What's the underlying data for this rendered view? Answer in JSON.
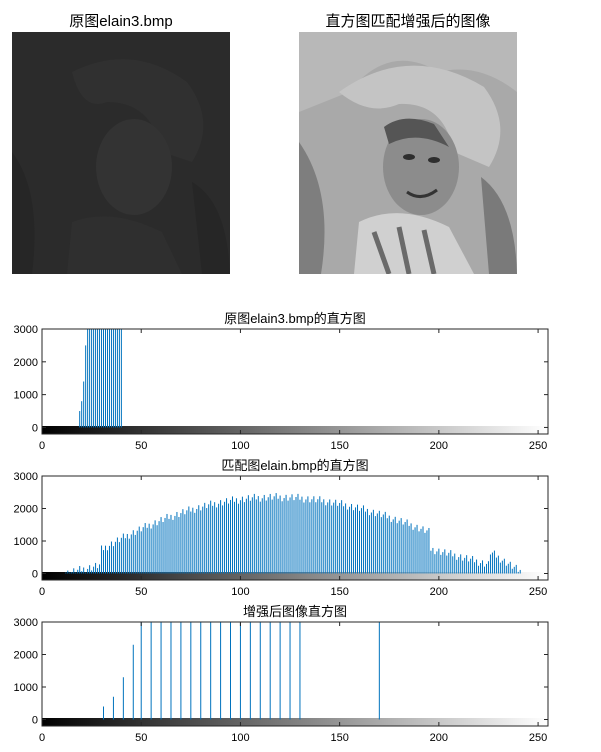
{
  "images": [
    {
      "title": "原图elain3.bmp",
      "name": "original-image",
      "tone": "dark"
    },
    {
      "title": "直方图匹配增强后的图像",
      "name": "enhanced-image",
      "tone": "light"
    }
  ],
  "colors": {
    "bar": "#0072BD",
    "axis": "#262626",
    "text": "#000000"
  },
  "chart_data": [
    {
      "type": "bar",
      "title": "原图elain3.bmp的直方图",
      "xlabel": "",
      "ylabel": "",
      "xlim": [
        0,
        255
      ],
      "ylim": [
        -200,
        3000
      ],
      "xticks": [
        0,
        50,
        100,
        150,
        200,
        250
      ],
      "yticks": [
        0,
        1000,
        2000,
        3000
      ],
      "grid": false,
      "colorbar": "grayscale",
      "x": [
        19,
        20,
        21,
        22,
        23,
        24,
        25,
        26,
        27,
        28,
        29,
        30,
        31,
        32,
        33,
        34,
        35,
        36,
        37,
        38,
        39,
        40
      ],
      "values": [
        500,
        800,
        1400,
        2500,
        3000,
        3000,
        3000,
        3000,
        3000,
        3000,
        3000,
        3000,
        3000,
        3000,
        3000,
        3000,
        3000,
        3000,
        3000,
        3000,
        3000,
        3000
      ]
    },
    {
      "type": "bar",
      "title": "匹配图elain.bmp的直方图",
      "xlabel": "",
      "ylabel": "",
      "xlim": [
        0,
        255
      ],
      "ylim": [
        -200,
        3000
      ],
      "xticks": [
        0,
        50,
        100,
        150,
        200,
        250
      ],
      "yticks": [
        0,
        1000,
        2000,
        3000
      ],
      "grid": false,
      "colorbar": "grayscale",
      "x": [],
      "values": []
    },
    {
      "type": "bar",
      "title": "增强后图像直方图",
      "xlabel": "",
      "ylabel": "",
      "xlim": [
        0,
        255
      ],
      "ylim": [
        -200,
        3000
      ],
      "xticks": [
        0,
        50,
        100,
        150,
        200,
        250
      ],
      "yticks": [
        0,
        1000,
        2000,
        3000
      ],
      "grid": false,
      "colorbar": "grayscale",
      "x": [
        31,
        36,
        41,
        46,
        50,
        55,
        60,
        65,
        70,
        75,
        80,
        85,
        90,
        95,
        100,
        105,
        110,
        115,
        120,
        125,
        130,
        170
      ],
      "values": [
        400,
        700,
        1300,
        2300,
        3000,
        3000,
        3000,
        3000,
        3000,
        3000,
        3000,
        3000,
        3000,
        3000,
        3000,
        3000,
        3000,
        3000,
        3000,
        3000,
        3000,
        3000
      ]
    }
  ]
}
